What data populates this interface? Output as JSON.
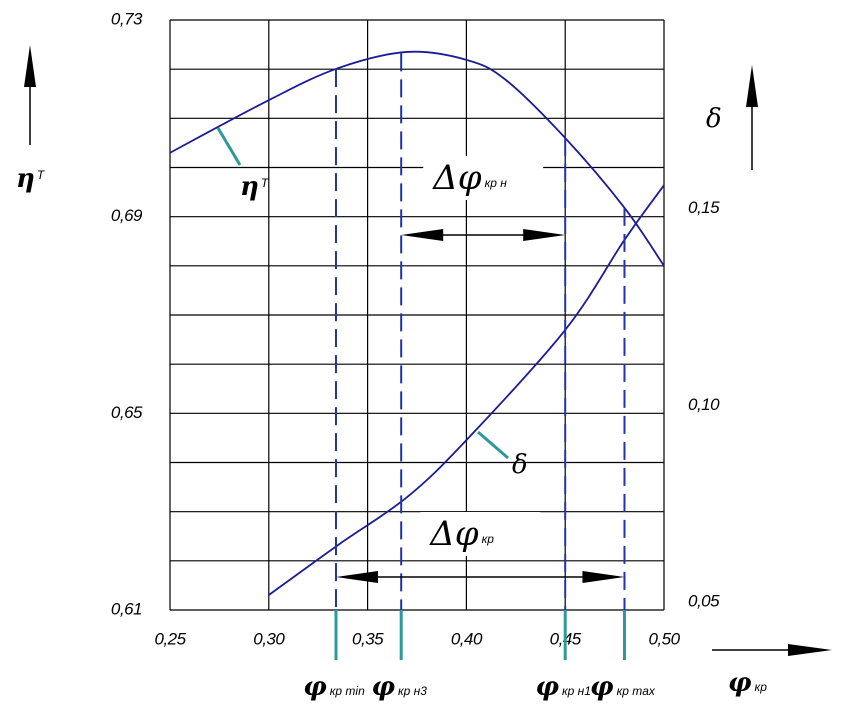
{
  "chart_data": {
    "type": "line",
    "x_label": {
      "symbol": "φ",
      "sub": "кр"
    },
    "y_label": {
      "symbol": "η",
      "sub": "T"
    },
    "y2_label": "δ",
    "xlim": [
      0.25,
      0.5
    ],
    "xticks": [
      {
        "value": 0.25,
        "label": "0,25"
      },
      {
        "value": 0.3,
        "label": "0,30"
      },
      {
        "value": 0.35,
        "label": "0,35"
      },
      {
        "value": 0.4,
        "label": "0,40"
      },
      {
        "value": 0.45,
        "label": "0,45"
      },
      {
        "value": 0.5,
        "label": "0,50"
      }
    ],
    "ylim": [
      0.61,
      0.73
    ],
    "yticks": [
      {
        "value": 0.61,
        "label": "0,61"
      },
      {
        "value": 0.65,
        "label": "0,65"
      },
      {
        "value": 0.69,
        "label": "0,69"
      },
      {
        "value": 0.73,
        "label": "0,73"
      }
    ],
    "ygrid": [
      0.61,
      0.62,
      0.63,
      0.64,
      0.65,
      0.66,
      0.67,
      0.68,
      0.69,
      0.7,
      0.71,
      0.72,
      0.73
    ],
    "y2lim": [
      0.05,
      0.2
    ],
    "y2ticks": [
      {
        "value": 0.05,
        "label": "0,05"
      },
      {
        "value": 0.1,
        "label": "0,10"
      },
      {
        "value": 0.15,
        "label": "0,15"
      }
    ],
    "grid": true,
    "series": [
      {
        "name": "η",
        "sub": "T",
        "color": "#1c1c96",
        "x": [
          0.25,
          0.3,
          0.335,
          0.37,
          0.4,
          0.42,
          0.45,
          0.48,
          0.5
        ],
        "values": [
          0.703,
          0.7137,
          0.7202,
          0.7235,
          0.7219,
          0.7178,
          0.706,
          0.6918,
          0.68
        ]
      },
      {
        "name": "δ",
        "color": "#1c1c96",
        "axis": "y2",
        "x": [
          0.3,
          0.335,
          0.37,
          0.4,
          0.45,
          0.48,
          0.5
        ],
        "values": [
          0.0538,
          0.0665,
          0.0787,
          0.0932,
          0.1212,
          0.1441,
          0.158
        ]
      }
    ],
    "markers": [
      {
        "symbol": "φ",
        "sub": "кр min",
        "x": 0.334
      },
      {
        "symbol": "φ",
        "sub": "кр н3",
        "x": 0.367
      },
      {
        "symbol": "φ",
        "sub": "кр н1",
        "x": 0.45
      },
      {
        "symbol": "φ",
        "sub": "кр max",
        "x": 0.48
      }
    ],
    "ranges": [
      {
        "symbol": "Δφ",
        "sub": "кр н",
        "x": [
          0.367,
          0.45
        ]
      },
      {
        "symbol": "Δφ",
        "sub": "кр",
        "x": [
          0.334,
          0.48
        ]
      }
    ]
  }
}
